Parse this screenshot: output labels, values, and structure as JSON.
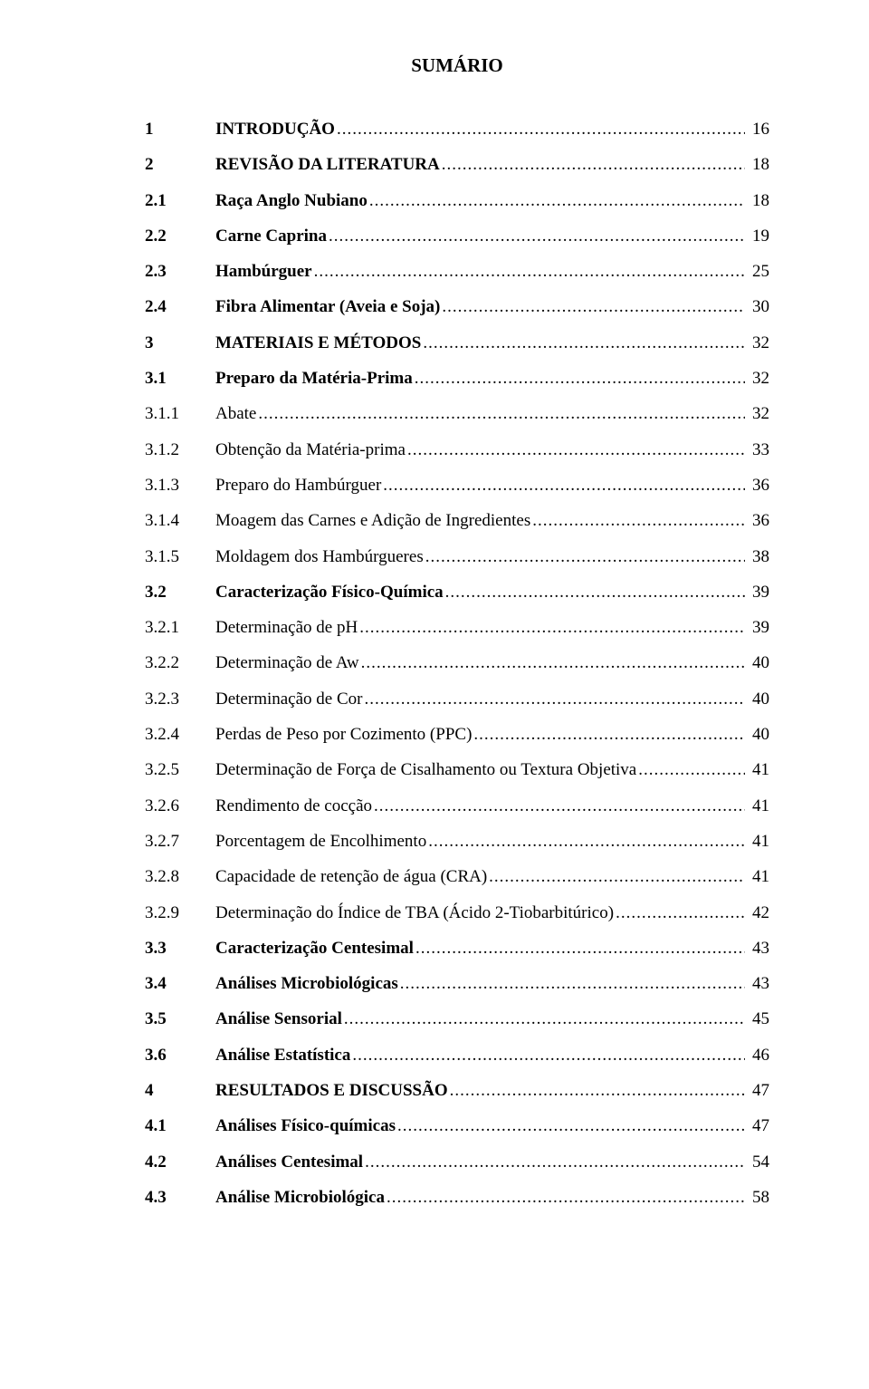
{
  "title": "SUMÁRIO",
  "font": {
    "family": "Times New Roman",
    "title_size_pt": 16,
    "body_size_pt": 14
  },
  "colors": {
    "text": "#000000",
    "background": "#ffffff"
  },
  "toc": [
    {
      "num": "1",
      "label": "INTRODUÇÃO",
      "page": "16",
      "bold": true
    },
    {
      "num": "2",
      "label": "REVISÃO DA LITERATURA",
      "page": "18",
      "bold": true
    },
    {
      "num": "2.1",
      "label": "Raça Anglo Nubiano",
      "page": "18",
      "bold": true
    },
    {
      "num": "2.2",
      "label": "Carne Caprina",
      "page": "19",
      "bold": true
    },
    {
      "num": "2.3",
      "label": "Hambúrguer",
      "page": "25",
      "bold": true
    },
    {
      "num": "2.4",
      "label": "Fibra Alimentar (Aveia e Soja)",
      "page": "30",
      "bold": true
    },
    {
      "num": "3",
      "label": "MATERIAIS E MÉTODOS",
      "page": "32",
      "bold": true
    },
    {
      "num": "3.1",
      "label": "Preparo da Matéria-Prima",
      "page": "32",
      "bold": true
    },
    {
      "num": "3.1.1",
      "label": "Abate",
      "page": "32",
      "bold": false
    },
    {
      "num": "3.1.2",
      "label": "Obtenção da Matéria-prima",
      "page": "33",
      "bold": false
    },
    {
      "num": "3.1.3",
      "label": "Preparo do Hambúrguer",
      "page": "36",
      "bold": false
    },
    {
      "num": "3.1.4",
      "label": "Moagem das Carnes e Adição de Ingredientes",
      "page": "36",
      "bold": false
    },
    {
      "num": "3.1.5",
      "label": "Moldagem dos Hambúrgueres",
      "page": "38",
      "bold": false
    },
    {
      "num": "3.2",
      "label": "Caracterização Físico-Química",
      "page": "39",
      "bold": true
    },
    {
      "num": "3.2.1",
      "label": "Determinação de pH",
      "page": "39",
      "bold": false
    },
    {
      "num": "3.2.2",
      "label": "Determinação de Aw",
      "page": "40",
      "bold": false
    },
    {
      "num": "3.2.3",
      "label": "Determinação de Cor",
      "page": "40",
      "bold": false
    },
    {
      "num": "3.2.4",
      "label": "Perdas de Peso por Cozimento (PPC)",
      "page": "40",
      "bold": false
    },
    {
      "num": "3.2.5",
      "label": "Determinação de Força de Cisalhamento ou Textura Objetiva",
      "page": "41",
      "bold": false
    },
    {
      "num": "3.2.6",
      "label": "Rendimento de cocção",
      "page": "41",
      "bold": false
    },
    {
      "num": "3.2.7",
      "label": "Porcentagem de Encolhimento",
      "page": "41",
      "bold": false
    },
    {
      "num": "3.2.8",
      "label": "Capacidade de retenção de água (CRA)",
      "page": "41",
      "bold": false
    },
    {
      "num": "3.2.9",
      "label": "Determinação do Índice de TBA (Ácido 2-Tiobarbitúrico)",
      "page": "42",
      "bold": false
    },
    {
      "num": "3.3",
      "label": "Caracterização Centesimal",
      "page": "43",
      "bold": true
    },
    {
      "num": "3.4",
      "label": "Análises Microbiológicas",
      "page": "43",
      "bold": true
    },
    {
      "num": "3.5",
      "label": "Análise Sensorial",
      "page": "45",
      "bold": true
    },
    {
      "num": "3.6",
      "label": "Análise Estatística",
      "page": "46",
      "bold": true
    },
    {
      "num": "4",
      "label": "RESULTADOS E DISCUSSÃO",
      "page": "47",
      "bold": true
    },
    {
      "num": "4.1",
      "label": "Análises Físico-químicas",
      "page": "47",
      "bold": true
    },
    {
      "num": "4.2",
      "label": "Análises Centesimal",
      "page": "54",
      "bold": true
    },
    {
      "num": "4.3",
      "label": "Análise Microbiológica",
      "page": "58",
      "bold": true
    }
  ]
}
